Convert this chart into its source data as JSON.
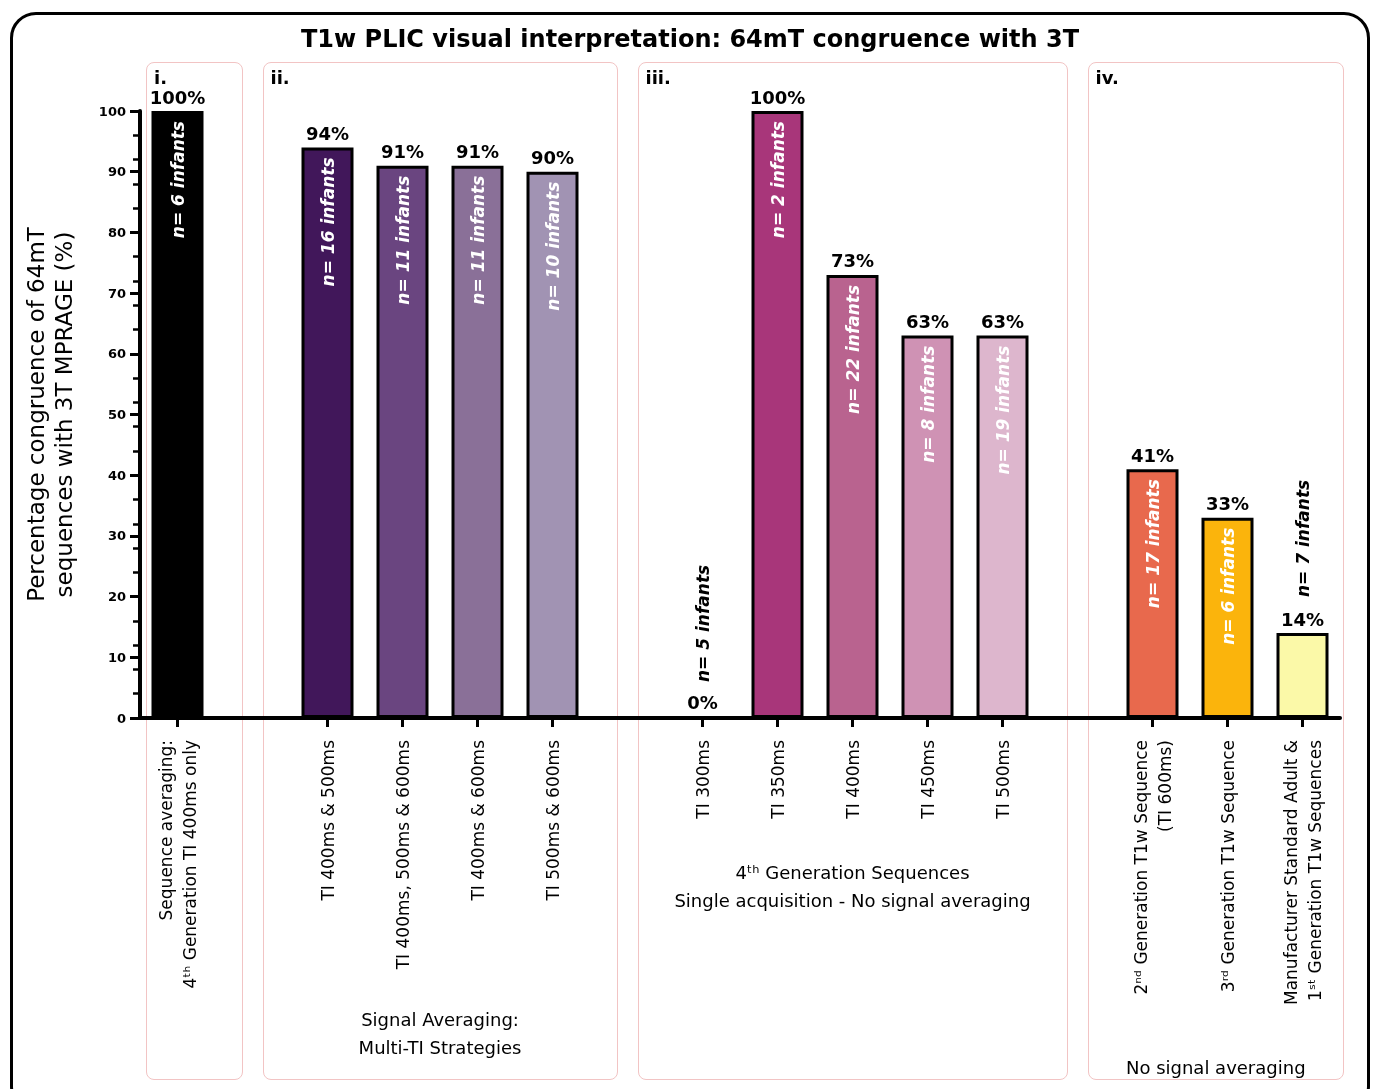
{
  "chart_data": {
    "type": "bar",
    "title": "T1w PLIC visual interpretation: 64mT congruence with 3T",
    "ylabel": "Percentage congruence of 64mT\nsequences with 3T MPRAGE (%)",
    "categories": [
      "Sequence averaging:\n4ᵗʰ Generation TI 400ms only",
      null,
      "TI 400ms & 500ms",
      "TI 400ms, 500ms & 600ms",
      "TI 400ms & 600ms",
      "TI 500ms & 600ms",
      null,
      "TI 300ms",
      "TI 350ms",
      "TI 400ms",
      "TI 450ms",
      "TI 500ms",
      null,
      "2ⁿᵈ Generation T1w Sequence\n(TI 600ms)",
      "3ʳᵈ Generation T1w Sequence",
      "Manufacturer Standard Adult &\n1ˢᵗ Generation T1w Sequences"
    ],
    "values": [
      100,
      null,
      94,
      91,
      91,
      90,
      null,
      0,
      100,
      73,
      63,
      63,
      null,
      41,
      33,
      14
    ],
    "colors": [
      "#000000",
      null,
      "#41175a",
      "#6a4580",
      "#8a7098",
      "#a193b3",
      null,
      "#000000",
      "#a8367a",
      "#b9638f",
      "#cf92b4",
      "#ddb6cd",
      null,
      "#e8694d",
      "#fbb40c",
      "#fbf9a8"
    ],
    "value_labels": [
      "100%",
      null,
      "94%",
      "91%",
      "91%",
      "90%",
      null,
      "0%",
      "100%",
      "73%",
      "63%",
      "63%",
      null,
      "41%",
      "33%",
      "14%"
    ],
    "ylim": [
      0,
      100
    ],
    "yticks": [
      0,
      10,
      20,
      30,
      40,
      50,
      60,
      70,
      80,
      90,
      100
    ],
    "annotations": [
      "i.",
      "ii.",
      "iii.",
      "iv.",
      "Signal Averaging:\nMulti-TI Strategies",
      "4ᵗʰ Generation Sequences\nSingle acquisition - No signal averaging",
      "No signal averaging",
      {
        "text": "n= 6 infants",
        "x": "Sequence averaging:\n4ᵗʰ Generation TI 400ms only",
        "y": 100
      },
      {
        "text": "n= 16 infants",
        "x": "TI 400ms & 500ms",
        "y": 94
      },
      {
        "text": "n= 11 infants",
        "x": "TI 400ms, 500ms & 600ms",
        "y": 91
      },
      {
        "text": "n= 11 infants",
        "x": "TI 400ms & 600ms",
        "y": 91
      },
      {
        "text": "n= 10 infants",
        "x": "TI 500ms & 600ms",
        "y": 90
      },
      {
        "text": "n= 5 infants",
        "x": "TI 300ms",
        "y": 0
      },
      {
        "text": "n= 2 infants",
        "x": "TI 350ms",
        "y": 100
      },
      {
        "text": "n= 22 infants",
        "x": "TI 400ms",
        "y": 73
      },
      {
        "text": "n= 8 infants",
        "x": "TI 450ms",
        "y": 63
      },
      {
        "text": "n= 19 infants",
        "x": "TI 500ms",
        "y": 63
      },
      {
        "text": "n= 17 infants",
        "x": "2ⁿᵈ Generation T1w Sequence\n(TI 600ms)",
        "y": 41
      },
      {
        "text": "n= 6 infants",
        "x": "3ʳᵈ Generation T1w Sequence",
        "y": 33
      },
      {
        "text": "n= 7 infants",
        "x": "Manufacturer Standard Adult &\n1ˢᵗ Generation T1w Sequences",
        "y": 14
      }
    ]
  }
}
